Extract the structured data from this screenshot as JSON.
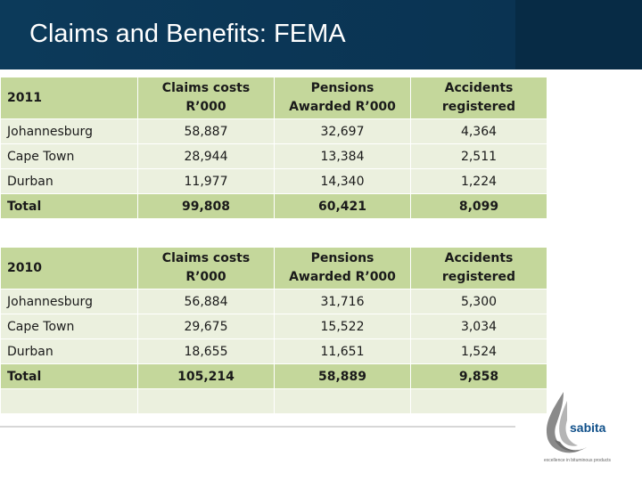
{
  "header": {
    "title": "Claims and Benefits: FEMA"
  },
  "tables": [
    {
      "year": "2011",
      "columns": [
        "Claims costs R’000",
        "Pensions Awarded R’000",
        "Accidents registered"
      ],
      "rows": [
        {
          "city": "Johannesburg",
          "values": [
            "58,887",
            "32,697",
            "4,364"
          ]
        },
        {
          "city": "Cape Town",
          "values": [
            "28,944",
            "13,384",
            "2,511"
          ]
        },
        {
          "city": "Durban",
          "values": [
            "11,977",
            "14,340",
            "1,224"
          ]
        }
      ],
      "total": {
        "label": "Total",
        "values": [
          "99,808",
          "60,421",
          "8,099"
        ]
      }
    },
    {
      "year": "2010",
      "columns": [
        "Claims costs R’000",
        "Pensions Awarded R’000",
        "Accidents registered"
      ],
      "rows": [
        {
          "city": "Johannesburg",
          "values": [
            "56,884",
            "31,716",
            "5,300"
          ]
        },
        {
          "city": "Cape Town",
          "values": [
            "29,675",
            "15,522",
            "3,034"
          ]
        },
        {
          "city": "Durban",
          "values": [
            "18,655",
            "11,651",
            "1,524"
          ]
        }
      ],
      "total": {
        "label": "Total",
        "values": [
          "105,214",
          "58,889",
          "9,858"
        ]
      }
    }
  ],
  "logo": {
    "name": "sabita",
    "tagline": "excellence in bituminous products",
    "icon": "drop-swirl-icon",
    "colors": {
      "word": "#10508a",
      "swirl": "#8a8a8a"
    }
  },
  "colors": {
    "header_bg": "#0c3a5a",
    "table_header": "#c4d79b",
    "table_body": "#ebf0de"
  }
}
